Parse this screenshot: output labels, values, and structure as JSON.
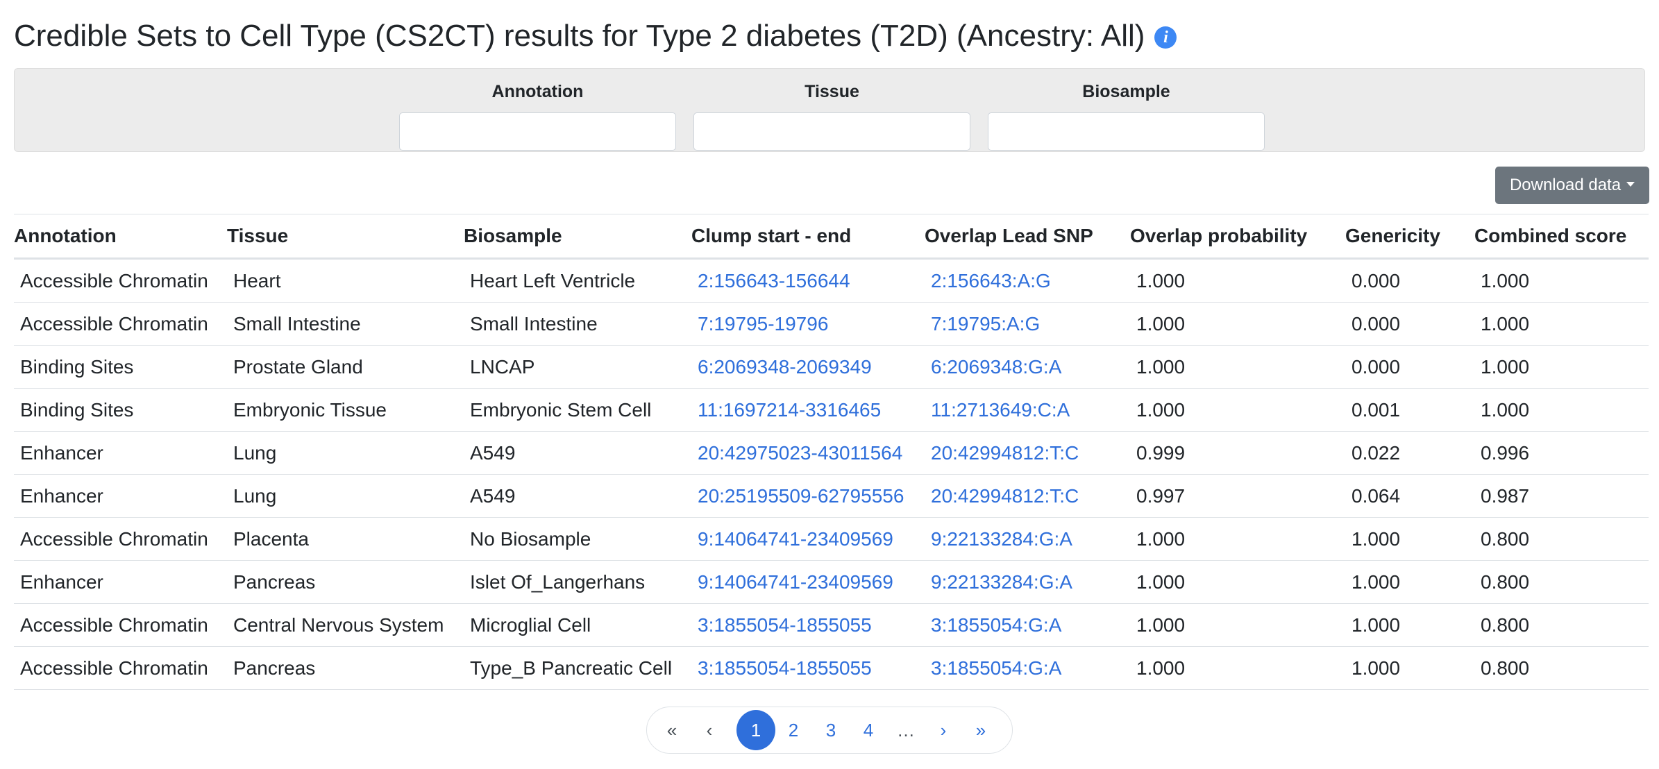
{
  "header": {
    "title": "Credible Sets to Cell Type (CS2CT) results for Type 2 diabetes (T2D) (Ancestry: All)",
    "info_icon": "i"
  },
  "filters": [
    {
      "label": "Annotation",
      "value": "",
      "placeholder": ""
    },
    {
      "label": "Tissue",
      "value": "",
      "placeholder": ""
    },
    {
      "label": "Biosample",
      "value": "",
      "placeholder": ""
    }
  ],
  "toolbar": {
    "download_label": "Download data"
  },
  "table": {
    "columns": [
      "Annotation",
      "Tissue",
      "Biosample",
      "Clump start - end",
      "Overlap Lead SNP",
      "Overlap probability",
      "Genericity",
      "Combined score"
    ],
    "rows": [
      [
        "Accessible Chromatin",
        "Heart",
        "Heart Left Ventricle",
        "2:156643-156644",
        "2:156643:A:G",
        "1.000",
        "0.000",
        "1.000"
      ],
      [
        "Accessible Chromatin",
        "Small Intestine",
        "Small Intestine",
        "7:19795-19796",
        "7:19795:A:G",
        "1.000",
        "0.000",
        "1.000"
      ],
      [
        "Binding Sites",
        "Prostate Gland",
        "LNCAP",
        "6:2069348-2069349",
        "6:2069348:G:A",
        "1.000",
        "0.000",
        "1.000"
      ],
      [
        "Binding Sites",
        "Embryonic Tissue",
        "Embryonic Stem Cell",
        "11:1697214-3316465",
        "11:2713649:C:A",
        "1.000",
        "0.001",
        "1.000"
      ],
      [
        "Enhancer",
        "Lung",
        "A549",
        "20:42975023-43011564",
        "20:42994812:T:C",
        "0.999",
        "0.022",
        "0.996"
      ],
      [
        "Enhancer",
        "Lung",
        "A549",
        "20:25195509-62795556",
        "20:42994812:T:C",
        "0.997",
        "0.064",
        "0.987"
      ],
      [
        "Accessible Chromatin",
        "Placenta",
        "No Biosample",
        "9:14064741-23409569",
        "9:22133284:G:A",
        "1.000",
        "1.000",
        "0.800"
      ],
      [
        "Enhancer",
        "Pancreas",
        "Islet Of_Langerhans",
        "9:14064741-23409569",
        "9:22133284:G:A",
        "1.000",
        "1.000",
        "0.800"
      ],
      [
        "Accessible Chromatin",
        "Central Nervous System",
        "Microglial Cell",
        "3:1855054-1855055",
        "3:1855054:G:A",
        "1.000",
        "1.000",
        "0.800"
      ],
      [
        "Accessible Chromatin",
        "Pancreas",
        "Type_B Pancreatic Cell",
        "3:1855054-1855055",
        "3:1855054:G:A",
        "1.000",
        "1.000",
        "0.800"
      ]
    ]
  },
  "pagination": {
    "first": "«",
    "prev": "‹",
    "pages": [
      "1",
      "2",
      "3",
      "4"
    ],
    "active_page": "1",
    "ellipsis": "…",
    "next": "›",
    "last": "»"
  }
}
